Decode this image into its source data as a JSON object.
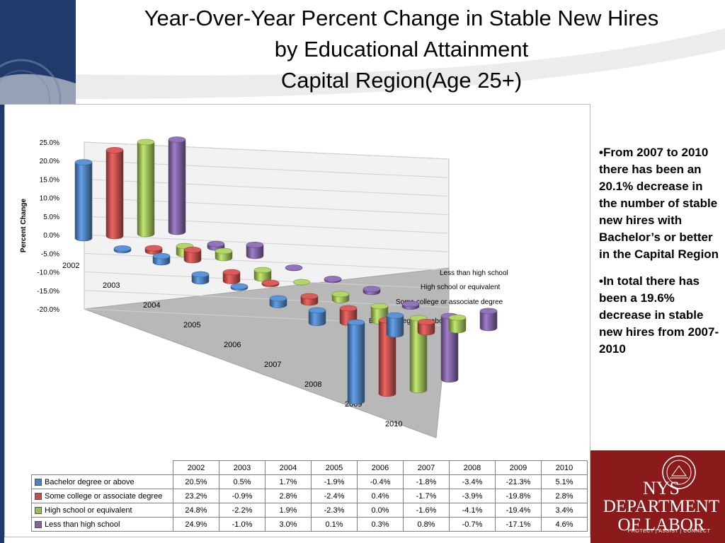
{
  "title": {
    "line1": "Year-Over-Year Percent Change in Stable New Hires",
    "line2": "by Educational Attainment",
    "line3": "Capital Region(Age 25+)"
  },
  "chart_data": {
    "type": "bar",
    "style": "3d-cylinder",
    "ylabel": "Percent Change",
    "ylim": [
      -20,
      25
    ],
    "yticks": [
      "25.0%",
      "20.0%",
      "15.0%",
      "10.0%",
      "5.0%",
      "0.0%",
      "-5.0%",
      "-10.0%",
      "-15.0%",
      "-20.0%"
    ],
    "categories": [
      "2002",
      "2003",
      "2004",
      "2005",
      "2006",
      "2007",
      "2008",
      "2009",
      "2010"
    ],
    "series": [
      {
        "name": "Bachelor degree or above",
        "color": "#4f81bd",
        "values": [
          20.5,
          0.5,
          1.7,
          -1.9,
          -0.4,
          -1.8,
          -3.4,
          -21.3,
          5.1
        ]
      },
      {
        "name": "Some college or associate  degree",
        "color": "#c0504d",
        "values": [
          23.2,
          -0.9,
          2.8,
          -2.4,
          0.4,
          -1.7,
          -3.9,
          -19.8,
          2.8
        ]
      },
      {
        "name": "High school or equivalent",
        "color": "#9bbb59",
        "values": [
          24.8,
          -2.2,
          1.9,
          -2.3,
          0.0,
          -1.6,
          -4.1,
          -19.4,
          3.4
        ]
      },
      {
        "name": "Less than high school",
        "color": "#8064a2",
        "values": [
          24.9,
          -1.0,
          3.0,
          0.1,
          0.3,
          0.8,
          -0.7,
          -17.1,
          4.6
        ]
      }
    ],
    "table": {
      "header": [
        "2002",
        "2003",
        "2004",
        "2005",
        "2006",
        "2007",
        "2008",
        "2009",
        "2010"
      ],
      "rows": [
        [
          "20.5%",
          "0.5%",
          "1.7%",
          "-1.9%",
          "-0.4%",
          "-1.8%",
          "-3.4%",
          "-21.3%",
          "5.1%"
        ],
        [
          "23.2%",
          "-0.9%",
          "2.8%",
          "-2.4%",
          "0.4%",
          "-1.7%",
          "-3.9%",
          "-19.8%",
          "2.8%"
        ],
        [
          "24.8%",
          "-2.2%",
          "1.9%",
          "-2.3%",
          "0.0%",
          "-1.6%",
          "-4.1%",
          "-19.4%",
          "3.4%"
        ],
        [
          "24.9%",
          "-1.0%",
          "3.0%",
          "0.1%",
          "0.3%",
          "0.8%",
          "-0.7%",
          "-17.1%",
          "4.6%"
        ]
      ]
    }
  },
  "notes": {
    "bullet1": "•From 2007 to 2010 there has been an 20.1% decrease in the number of stable new hires with Bachelor’s or better in the Capital Region",
    "bullet2": "•In total there has been a 19.6% decrease in stable new hires from 2007-2010"
  },
  "logo": {
    "line1": "NYS",
    "line2": "DEPARTMENT",
    "line3": "OF LABOR",
    "tagline": "PROTECT | ASSIST | CONNECT",
    "brand_color": "#8b1a1a"
  }
}
